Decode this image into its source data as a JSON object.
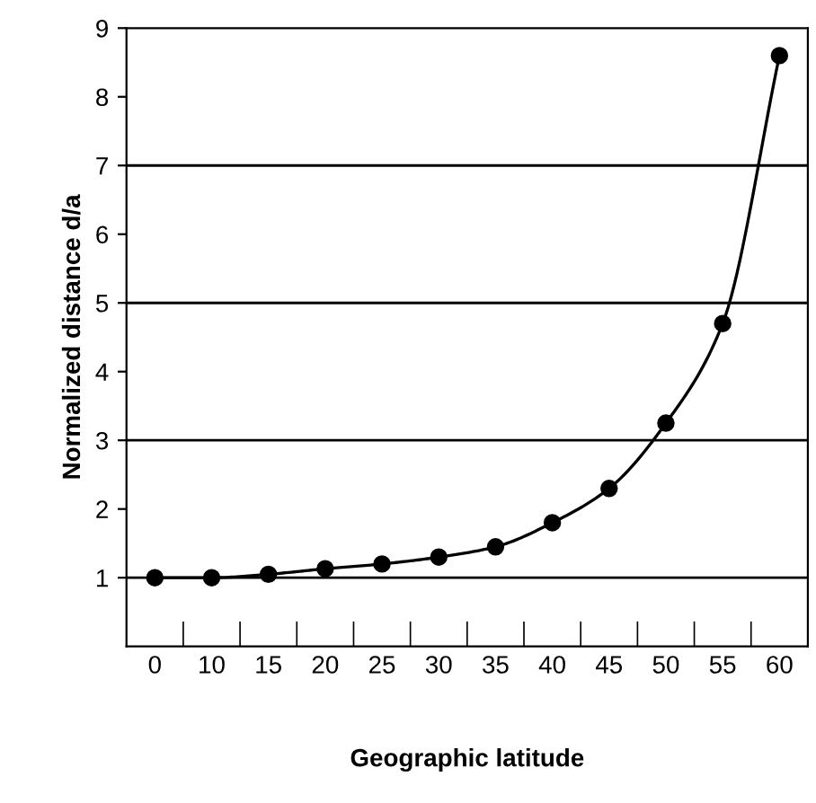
{
  "chart_data": {
    "type": "line",
    "xlabel": "Geographic latitude",
    "ylabel": "Normalized distance d/a",
    "categories": [
      "0",
      "10",
      "15",
      "20",
      "25",
      "30",
      "35",
      "40",
      "45",
      "50",
      "55",
      "60"
    ],
    "series": [
      {
        "color": "#000000",
        "values": [
          1.0,
          1.0,
          1.05,
          1.13,
          1.2,
          1.3,
          1.45,
          1.8,
          2.3,
          3.25,
          4.7,
          8.6
        ]
      }
    ],
    "ylim": [
      0,
      9
    ],
    "yticks": [
      1,
      2,
      3,
      4,
      5,
      6,
      7,
      8,
      9
    ],
    "marker": "circle",
    "line_style": "solid",
    "grid": false,
    "legend": false,
    "ref_lines": [
      {
        "axis": "y",
        "value": 1,
        "color": "#000000"
      },
      {
        "axis": "y",
        "value": 3,
        "color": "#000000"
      },
      {
        "axis": "y",
        "value": 5,
        "color": "#000000"
      },
      {
        "axis": "y",
        "value": 7,
        "color": "#000000"
      }
    ]
  }
}
